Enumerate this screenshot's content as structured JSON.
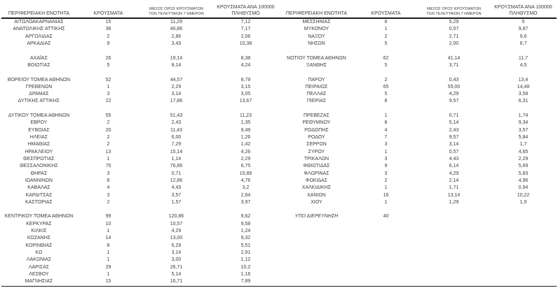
{
  "colors": {
    "background": "#FFFFFF",
    "text": "#3C3C3C",
    "rule_lines": "#1C1C1C"
  },
  "table": {
    "headers": {
      "region": "ΠΕΡΙΦΕΡΕΙΑΚΗ ΕΝΟΤΗΤΑ",
      "cases": "ΚΡΟΥΣΜΑΤΑ",
      "avg_line1": "ΜΕΣΟΣ ΟΡΟΣ ΚΡΟΥΣΜΑΤΩΝ",
      "avg_line2": "ΤΩΝ ΤΕΛΕΥΤΑΙΩΝ 7 ΗΜΕΡΩΝ",
      "per_line1": "ΚΡΟΥΣΜΑΤΑ ΑΝΑ 100000",
      "per_line2": "ΠΛΗΘΥΣΜΟ"
    },
    "left_rows": [
      {
        "region": "ΑΙΤΩΛΟΑΚΑΡΝΑΝΙΑΣ",
        "cases": "15",
        "avg": "11,29",
        "per": "7,12"
      },
      {
        "region": "ΑΝΑΤΟΛΙΚΗΣ ΑΤΤΙΚΗΣ",
        "cases": "36",
        "avg": "40,86",
        "per": "7,17"
      },
      {
        "region": "ΑΡΓΟΛΙΔΑΣ",
        "cases": "2",
        "avg": "2,86",
        "per": "2,06"
      },
      {
        "region": "ΑΡΚΑΔΙΑΣ",
        "cases": "9",
        "avg": "3,43",
        "per": "10,38"
      },
      {
        "blank": true
      },
      {
        "region": "ΑΧΑΪΑΣ",
        "cases": "26",
        "avg": "19,14",
        "per": "8,38"
      },
      {
        "region": "ΒΟΙΩΤΙΑΣ",
        "cases": "5",
        "avg": "8,14",
        "per": "4,24"
      },
      {
        "blank": true
      },
      {
        "region": "ΒΟΡΕΙΟΥ ΤΟΜΕΑ ΑΘΗΝΩΝ",
        "cases": "52",
        "avg": "44,57",
        "per": "8,79"
      },
      {
        "region": "ΓΡΕΒΕΝΩΝ",
        "cases": "1",
        "avg": "2,29",
        "per": "3,15"
      },
      {
        "region": "ΔΡΑΜΑΣ",
        "cases": "3",
        "avg": "3,14",
        "per": "3,05"
      },
      {
        "region": "ΔΥΤΙΚΗΣ ΑΤΤΙΚΗΣ",
        "cases": "22",
        "avg": "17,86",
        "per": "13,67"
      },
      {
        "blank": true
      },
      {
        "region": "ΔΥΤΙΚΟΥ ΤΟΜΕΑ ΑΘΗΝΩΝ",
        "cases": "55",
        "avg": "51,43",
        "per": "11,23"
      },
      {
        "region": "ΕΒΡΟΥ",
        "cases": "2",
        "avg": "2,43",
        "per": "1,35"
      },
      {
        "region": "ΕΥΒΟΙΑΣ",
        "cases": "20",
        "avg": "11,43",
        "per": "9,49"
      },
      {
        "region": "ΗΛΕΙΑΣ",
        "cases": "2",
        "avg": "6,00",
        "per": "1,26"
      },
      {
        "region": "ΗΜΑΘΙΑΣ",
        "cases": "2",
        "avg": "7,29",
        "per": "1,42"
      },
      {
        "region": "ΗΡΑΚΛΕΙΟΥ",
        "cases": "13",
        "avg": "15,14",
        "per": "4,26"
      },
      {
        "region": "ΘΕΣΠΡΩΤΙΑΣ",
        "cases": "1",
        "avg": "1,14",
        "per": "2,29"
      },
      {
        "region": "ΘΕΣΣΑΛΟΝΙΚΗΣ",
        "cases": "75",
        "avg": "76,86",
        "per": "6,75"
      },
      {
        "region": "ΘΗΡΑΣ",
        "cases": "3",
        "avg": "0,71",
        "per": "15,89"
      },
      {
        "region": "ΙΩΑΝΝΙΝΩΝ",
        "cases": "8",
        "avg": "12,86",
        "per": "4,76"
      },
      {
        "region": "ΚΑΒΑΛΑΣ",
        "cases": "4",
        "avg": "4,43",
        "per": "3,2"
      },
      {
        "region": "ΚΑΡΔΙΤΣΑΣ",
        "cases": "3",
        "avg": "3,57",
        "per": "2,64"
      },
      {
        "region": "ΚΑΣΤΟΡΙΑΣ",
        "cases": "2",
        "avg": "1,57",
        "per": "3,97"
      },
      {
        "blank": true
      },
      {
        "region": "ΚΕΝΤΡΙΚΟΥ ΤΟΜΕΑ ΑΘΗΝΩΝ",
        "cases": "99",
        "avg": "120,86",
        "per": "9,62"
      },
      {
        "region": "ΚΕΡΚΥΡΑΣ",
        "cases": "10",
        "avg": "10,57",
        "per": "9,58"
      },
      {
        "region": "ΚΙΛΚΙΣ",
        "cases": "1",
        "avg": "4,29",
        "per": "1,24"
      },
      {
        "region": "ΚΟΖΑΝΗΣ",
        "cases": "14",
        "avg": "13,00",
        "per": "9,32"
      },
      {
        "region": "ΚΟΡΙΝΘΙΑΣ",
        "cases": "8",
        "avg": "6,29",
        "per": "5,51"
      },
      {
        "region": "ΚΩ",
        "cases": "1",
        "avg": "3,14",
        "per": "2,91"
      },
      {
        "region": "ΛΑΚΩΝΙΑΣ",
        "cases": "1",
        "avg": "3,00",
        "per": "1,12"
      },
      {
        "region": "ΛΑΡΙΣΑΣ",
        "cases": "29",
        "avg": "26,71",
        "per": "10,2"
      },
      {
        "region": "ΛΕΣΒΟΥ",
        "cases": "1",
        "avg": "5,14",
        "per": "1,16"
      },
      {
        "region": "ΜΑΓΝΗΣΙΑΣ",
        "cases": "15",
        "avg": "16,71",
        "per": "7,89"
      }
    ],
    "right_rows": [
      {
        "region": "ΜΕΣΣΗΝΙΑΣ",
        "cases": "8",
        "avg": "5,29",
        "per": "5"
      },
      {
        "region": "ΜΥΚΟΝΟΥ",
        "cases": "1",
        "avg": "0,57",
        "per": "9,87"
      },
      {
        "region": "ΝΑΞΟΥ",
        "cases": "2",
        "avg": "2,71",
        "per": "9,6"
      },
      {
        "region": "ΝΗΣΩΝ",
        "cases": "5",
        "avg": "2,00",
        "per": "6,7"
      },
      {
        "blank": true
      },
      {
        "region": "ΝΟΤΙΟΥ ΤΟΜΕΑ ΑΘΗΝΩΝ",
        "cases": "62",
        "avg": "41,14",
        "per": "11,7"
      },
      {
        "region": "ΞΑΝΘΗΣ",
        "cases": "5",
        "avg": "3,71",
        "per": "4,5"
      },
      {
        "blank": true
      },
      {
        "region": "ΠΑΡΟΥ",
        "cases": "2",
        "avg": "0,43",
        "per": "13,4"
      },
      {
        "region": "ΠΕΙΡΑΙΩΣ",
        "cases": "65",
        "avg": "55,00",
        "per": "14,48"
      },
      {
        "region": "ΠΕΛΛΑΣ",
        "cases": "5",
        "avg": "4,29",
        "per": "3,58"
      },
      {
        "region": "ΠΙΕΡΙΑΣ",
        "cases": "8",
        "avg": "9,57",
        "per": "6,31"
      },
      {
        "blank": true
      },
      {
        "region": "ΠΡΕΒΕΖΑΣ",
        "cases": "1",
        "avg": "0,71",
        "per": "1,74"
      },
      {
        "region": "ΡΕΘΥΜΝΟΥ",
        "cases": "8",
        "avg": "5,14",
        "per": "9,34"
      },
      {
        "region": "ΡΟΔΟΠΗΣ",
        "cases": "4",
        "avg": "2,43",
        "per": "3,57"
      },
      {
        "region": "ΡΟΔΟΥ",
        "cases": "7",
        "avg": "9,57",
        "per": "5,84"
      },
      {
        "region": "ΣΕΡΡΩΝ",
        "cases": "3",
        "avg": "3,14",
        "per": "1,7"
      },
      {
        "region": "ΣΥΡΟΥ",
        "cases": "1",
        "avg": "0,57",
        "per": "4,65"
      },
      {
        "region": "ΤΡΙΚΑΛΩΝ",
        "cases": "3",
        "avg": "4,43",
        "per": "2,29"
      },
      {
        "region": "ΦΘΙΩΤΙΔΑΣ",
        "cases": "9",
        "avg": "6,14",
        "per": "5,69"
      },
      {
        "region": "ΦΛΩΡΙΝΑΣ",
        "cases": "3",
        "avg": "4,29",
        "per": "5,83"
      },
      {
        "region": "ΦΩΚΙΔΑΣ",
        "cases": "2",
        "avg": "2,14",
        "per": "4,96"
      },
      {
        "region": "ΧΑΛΚΙΔΙΚΗΣ",
        "cases": "1",
        "avg": "1,71",
        "per": "0,94"
      },
      {
        "region": "ΧΑΝΙΩΝ",
        "cases": "16",
        "avg": "13,14",
        "per": "10,22"
      },
      {
        "region": "ΧΙΟΥ",
        "cases": "1",
        "avg": "1,29",
        "per": "1,9"
      },
      {
        "blank": true
      },
      {
        "region": "ΥΠΟ ΔΙΕΡΕΥΝΗΣΗ",
        "cases": "40",
        "avg": "",
        "per": "",
        "italic": true
      },
      {
        "blank": true
      },
      {
        "blank": true
      },
      {
        "blank": true
      },
      {
        "blank": true
      },
      {
        "blank": true
      },
      {
        "blank": true
      },
      {
        "blank": true
      },
      {
        "blank": true
      },
      {
        "blank": true
      }
    ]
  }
}
